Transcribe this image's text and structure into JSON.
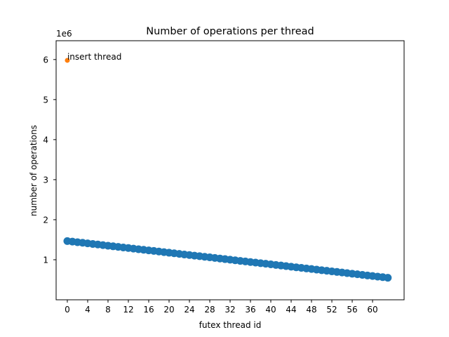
{
  "chart_data": {
    "type": "scatter",
    "title": "Number of operations per thread",
    "xlabel": "futex thread id",
    "ylabel": "number of operations",
    "y_offset_text": "1e6",
    "xlim": [
      -2.2,
      66.2
    ],
    "ylim": [
      0.0,
      6.47
    ],
    "x_ticks": [
      0,
      4,
      8,
      12,
      16,
      20,
      24,
      28,
      32,
      36,
      40,
      44,
      48,
      52,
      56,
      60
    ],
    "y_ticks": [
      1,
      2,
      3,
      4,
      5,
      6
    ],
    "y_tick_labels": [
      "1",
      "2",
      "3",
      "4",
      "5",
      "6"
    ],
    "grid": false,
    "legend": "none",
    "series": [
      {
        "color": "#1f77b4",
        "marker_size": "large",
        "x_start": 0,
        "x_step": 1,
        "values": [
          1.467,
          1.453,
          1.438,
          1.424,
          1.409,
          1.394,
          1.38,
          1.365,
          1.351,
          1.336,
          1.322,
          1.307,
          1.293,
          1.278,
          1.263,
          1.249,
          1.234,
          1.22,
          1.205,
          1.191,
          1.176,
          1.162,
          1.147,
          1.132,
          1.118,
          1.103,
          1.089,
          1.074,
          1.06,
          1.045,
          1.031,
          1.016,
          1.001,
          0.987,
          0.972,
          0.958,
          0.943,
          0.929,
          0.914,
          0.9,
          0.885,
          0.87,
          0.856,
          0.841,
          0.827,
          0.812,
          0.798,
          0.783,
          0.769,
          0.754,
          0.739,
          0.725,
          0.71,
          0.696,
          0.681,
          0.667,
          0.652,
          0.638,
          0.623,
          0.608,
          0.594,
          0.579,
          0.565,
          0.55
        ]
      },
      {
        "color": "#ff7f0e",
        "marker_size": "small",
        "x_start": 0,
        "x_step": 1,
        "values": [
          5.98
        ]
      }
    ],
    "annotations": [
      {
        "text": "insert thread",
        "x": 0,
        "y": 5.98
      }
    ]
  }
}
